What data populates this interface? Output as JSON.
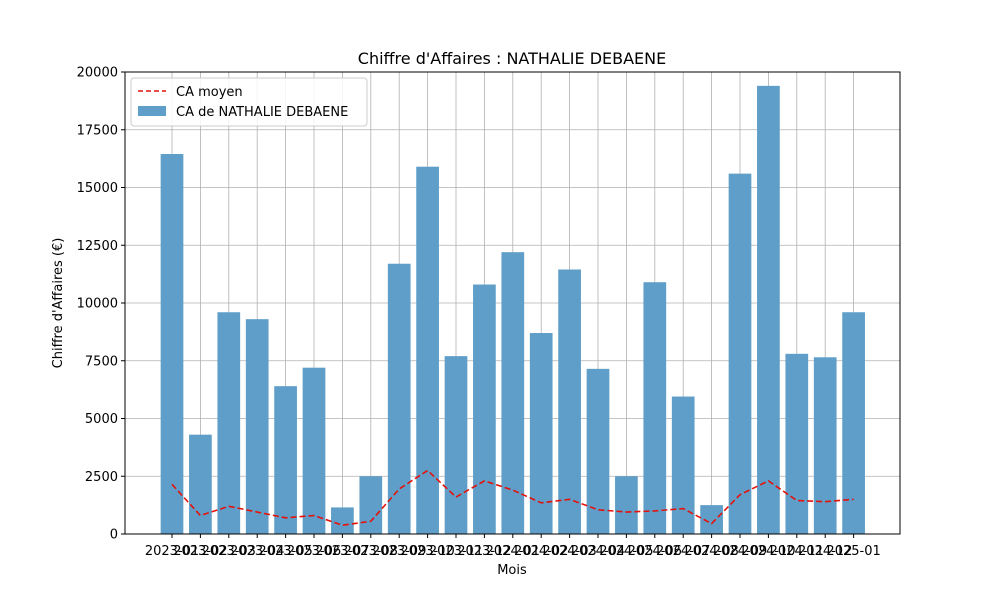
{
  "chart_data": {
    "type": "bar",
    "title": "Chiffre d'Affaires : NATHALIE DEBAENE",
    "xlabel": "Mois",
    "ylabel": "Chiffre d'Affaires (€)",
    "ylim": [
      0,
      20000
    ],
    "yticks": [
      0,
      2500,
      5000,
      7500,
      10000,
      12500,
      15000,
      17500,
      20000
    ],
    "grid": true,
    "legend_position": "top-left",
    "categories": [
      "2023-01",
      "2023-02",
      "2023-03",
      "2023-04",
      "2023-05",
      "2023-06",
      "2023-07",
      "2023-08",
      "2023-09",
      "2023-10",
      "2023-11",
      "2023-12",
      "2024-01",
      "2024-02",
      "2024-03",
      "2024-04",
      "2024-05",
      "2024-06",
      "2024-07",
      "2024-08",
      "2024-09",
      "2024-10",
      "2024-11",
      "2024-12",
      "2025-01"
    ],
    "series": [
      {
        "name": "CA de NATHALIE DEBAENE",
        "type": "bar",
        "color": "#5f9ec8",
        "values": [
          16450,
          4300,
          9600,
          9300,
          6400,
          7200,
          1150,
          2500,
          11700,
          15900,
          7700,
          10800,
          12200,
          8700,
          11450,
          7150,
          2500,
          10900,
          5950,
          1250,
          15600,
          19400,
          7800,
          7650,
          9600
        ]
      },
      {
        "name": "CA moyen",
        "type": "line",
        "color": "#e3120b",
        "values": [
          2150,
          800,
          1200,
          950,
          700,
          800,
          380,
          550,
          1950,
          2750,
          1600,
          2300,
          1900,
          1350,
          1500,
          1050,
          950,
          1000,
          1100,
          450,
          1700,
          2300,
          1450,
          1400,
          1500
        ]
      }
    ]
  }
}
